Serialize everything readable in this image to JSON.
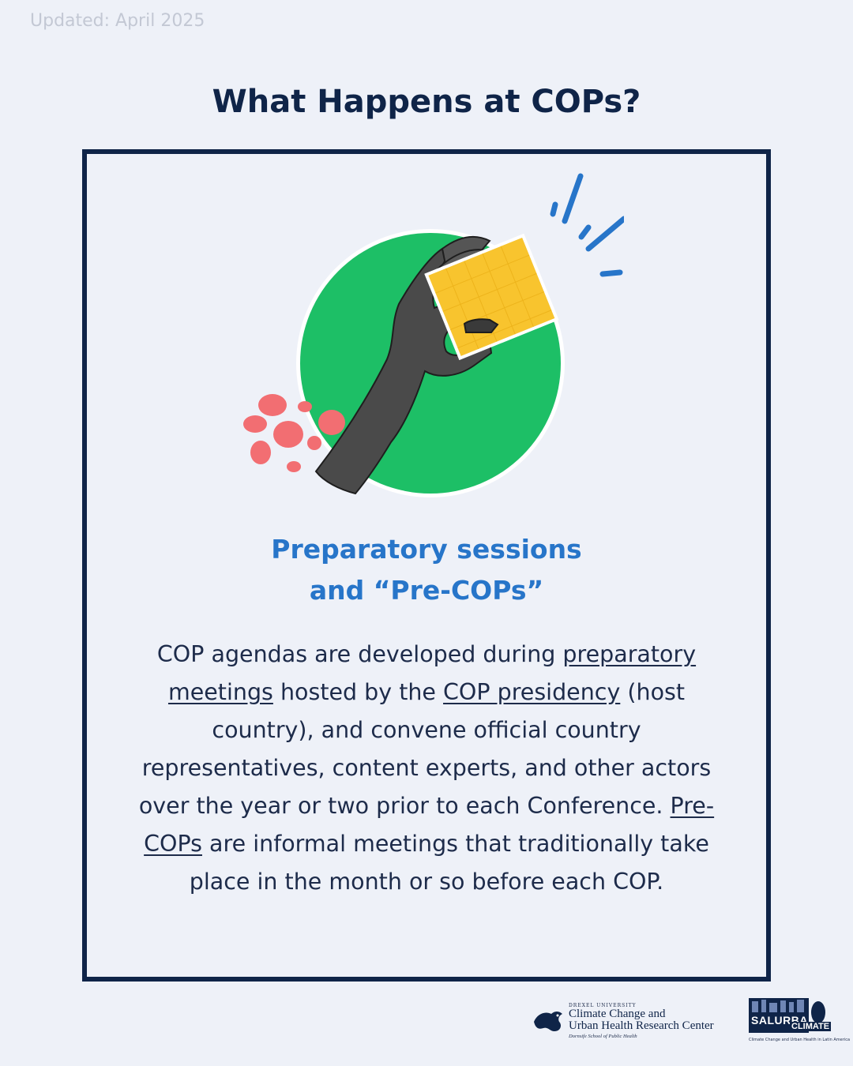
{
  "updated": "Updated: April 2025",
  "title": "What Happens at COPs?",
  "card": {
    "subtitle_line1": "Preparatory sessions",
    "subtitle_line2": "and “Pre-COPs”",
    "body": {
      "t1": "COP agendas are developed during ",
      "link1": "preparatory meetings",
      "t2": " hosted by the ",
      "link2": "COP presidency",
      "t3": " (host country), and convene official country representatives, content experts, and other actors over the year or two prior to each Conference. ",
      "link3": "Pre-COPs",
      "t4": " are informal meetings that traditionally take place in the month or so before each COP."
    }
  },
  "footer": {
    "drexel_small": "DREXEL UNIVERSITY",
    "drexel_line1": "Climate Change and",
    "drexel_line2": "Urban Health Research Center",
    "drexel_school": "Dornsife School of Public Health",
    "salurba_line1": "SALURBA",
    "salurba_line2": "CLIMATE",
    "salurba_tagline": "Climate Change and Urban Health in Latin America"
  },
  "colors": {
    "background": "#eef1f8",
    "navy": "#0f2448",
    "accent_blue": "#2775c9",
    "green_circle": "#1dbf66",
    "yellow_note": "#f8c42e",
    "coral_dots": "#f26e72"
  },
  "icons": [
    "hand-illustration",
    "drexel-dragon-icon",
    "salurba-tree-icon"
  ]
}
